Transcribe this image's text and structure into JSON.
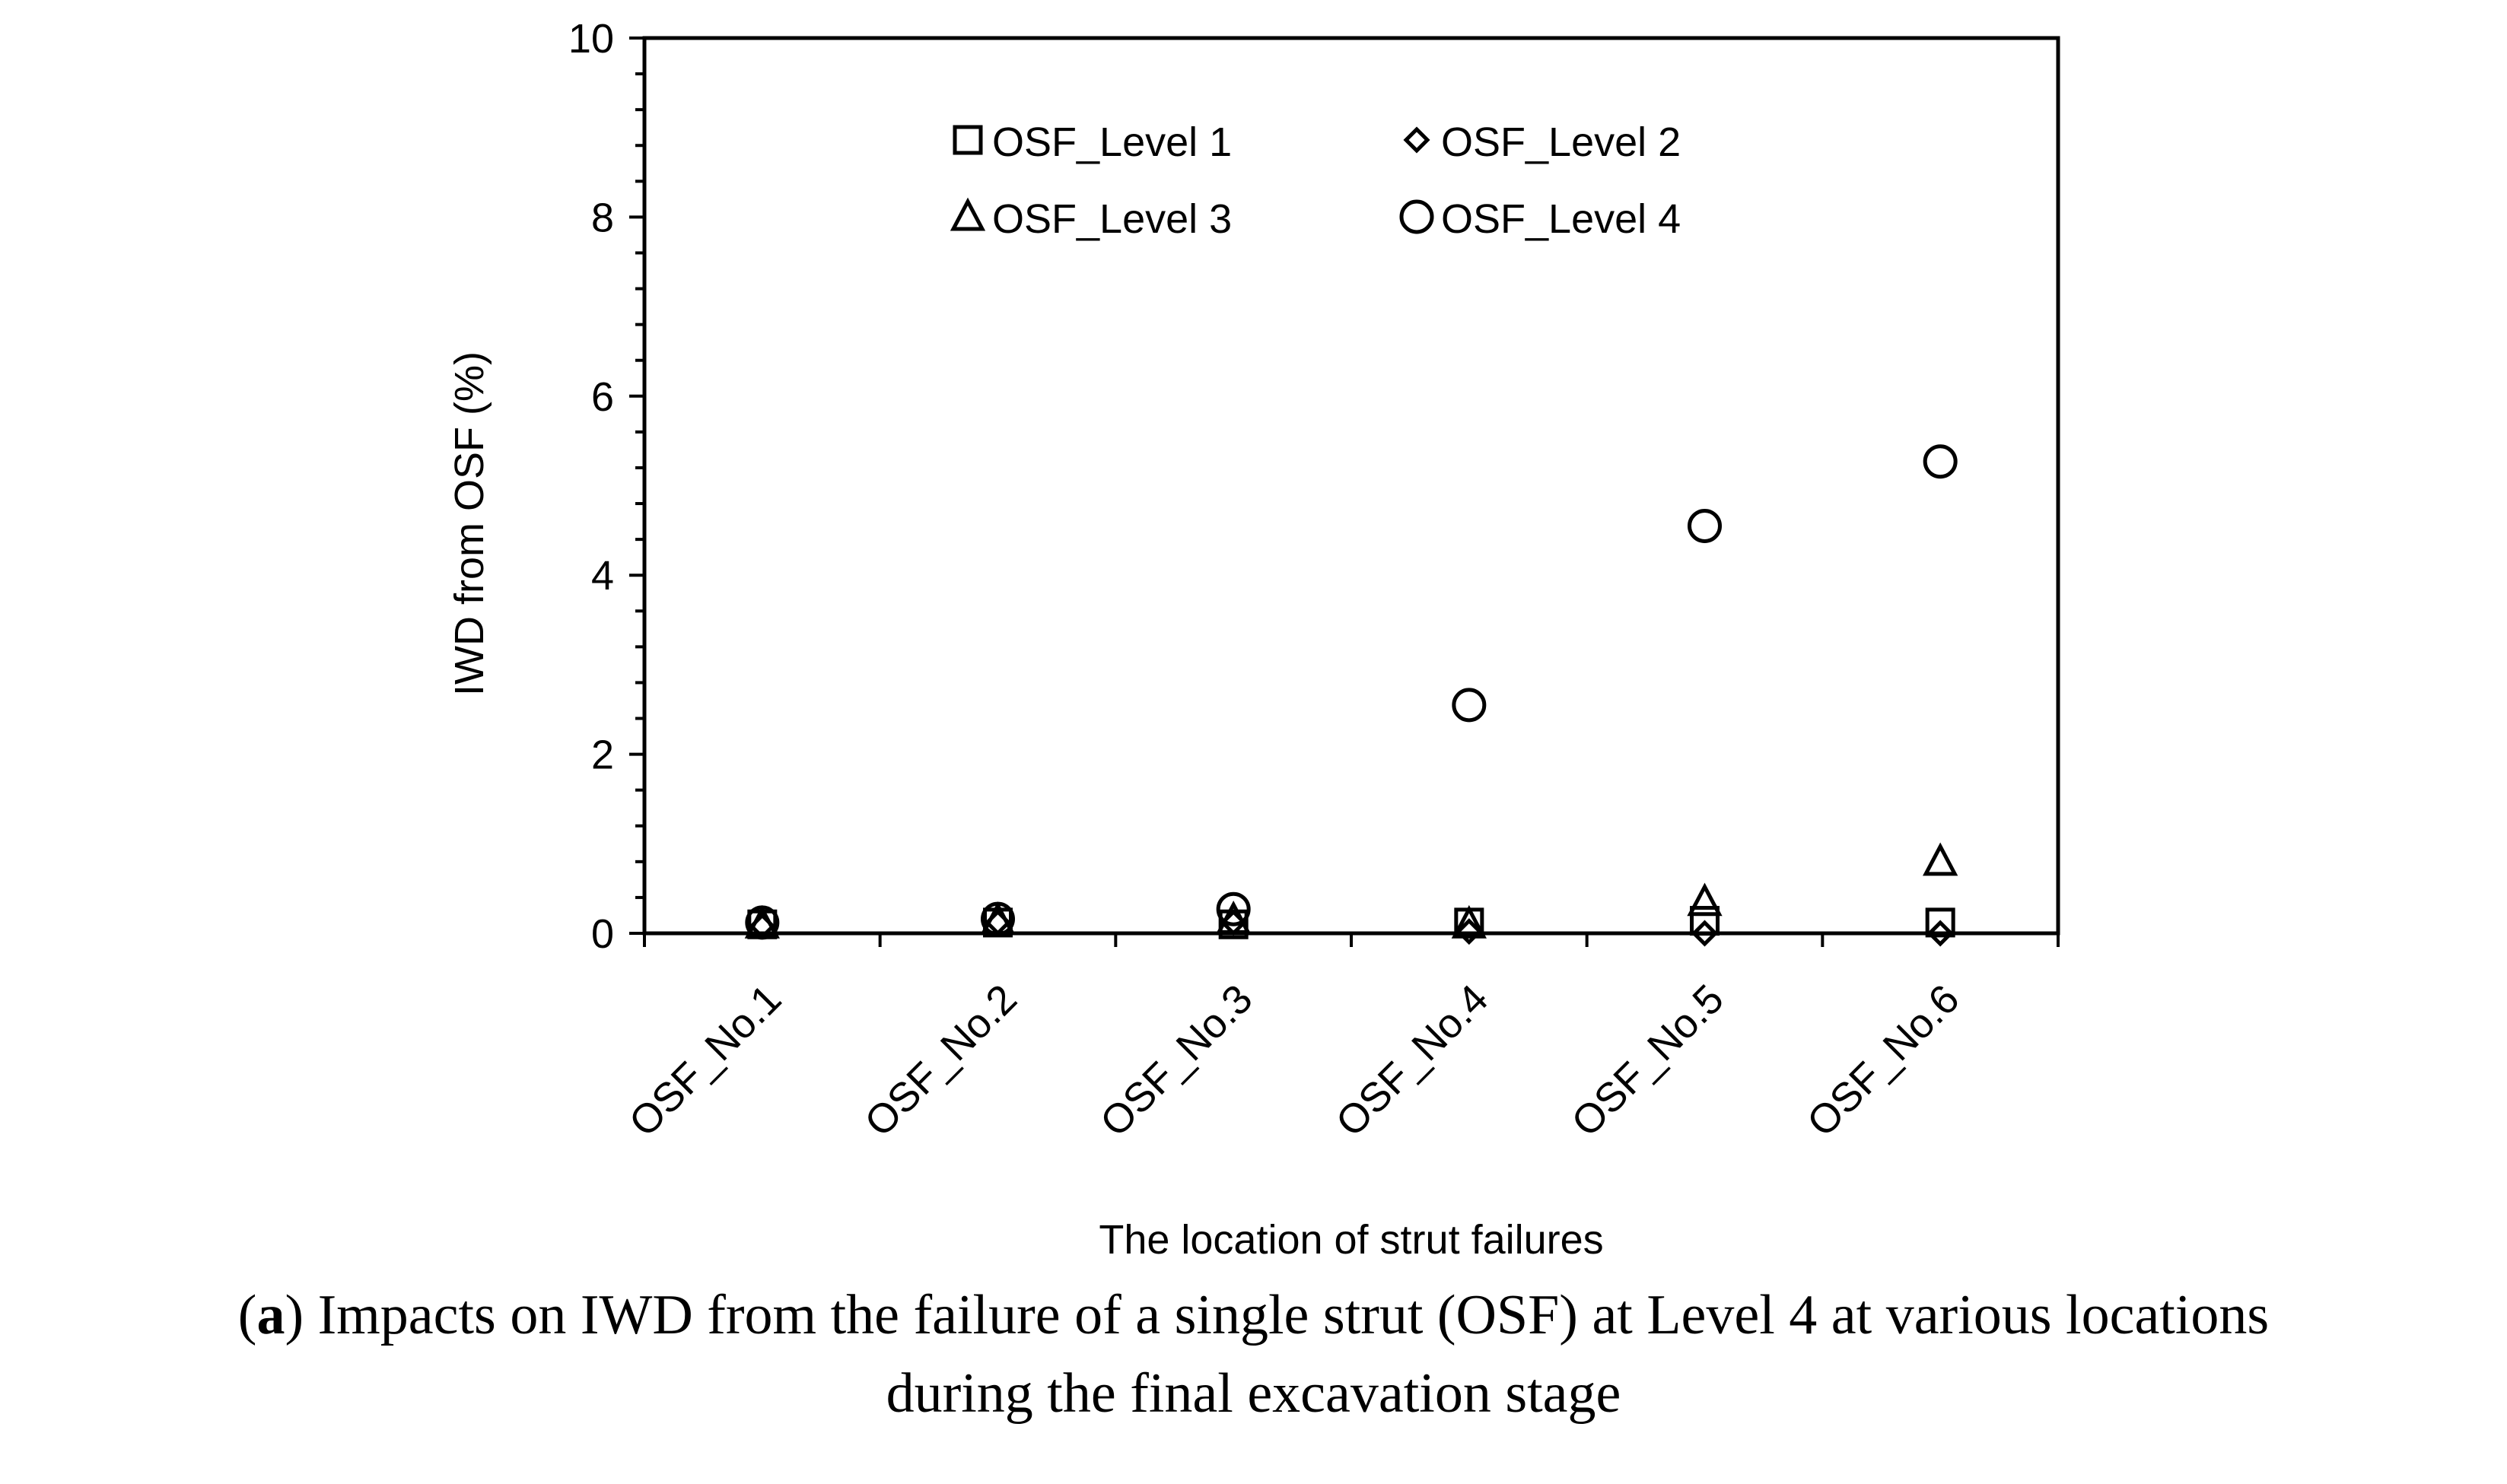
{
  "chart_data": {
    "type": "scatter",
    "title": "",
    "xlabel": "The location of strut failures",
    "ylabel": "IWD from OSF (%)",
    "categories": [
      "OSF_No.1",
      "OSF_No.2",
      "OSF_No.3",
      "OSF_No.4",
      "OSF_No.5",
      "OSF_No.6"
    ],
    "ylim": [
      0,
      10
    ],
    "yticks": [
      0,
      2,
      4,
      6,
      8,
      10
    ],
    "grid": false,
    "legend_position": "top-center",
    "series": [
      {
        "name": "OSF_Level 1",
        "marker": "square",
        "values": [
          0.1,
          0.12,
          0.1,
          0.12,
          0.14,
          0.12
        ]
      },
      {
        "name": "OSF_Level 2",
        "marker": "diamond",
        "values": [
          0.08,
          0.12,
          0.12,
          0.02,
          0.0,
          0.0
        ]
      },
      {
        "name": "OSF_Level 3",
        "marker": "triangle",
        "values": [
          0.1,
          0.14,
          0.15,
          0.1,
          0.35,
          0.8
        ]
      },
      {
        "name": "OSF_Level 4",
        "marker": "circle",
        "values": [
          0.12,
          0.16,
          0.27,
          2.55,
          4.55,
          5.27
        ]
      }
    ]
  },
  "caption": {
    "label": "a",
    "line1_rest": ") Impacts on IWD from the failure of a single strut (OSF) at Level 4 at various locations",
    "line2": "during the final excavation stage"
  }
}
